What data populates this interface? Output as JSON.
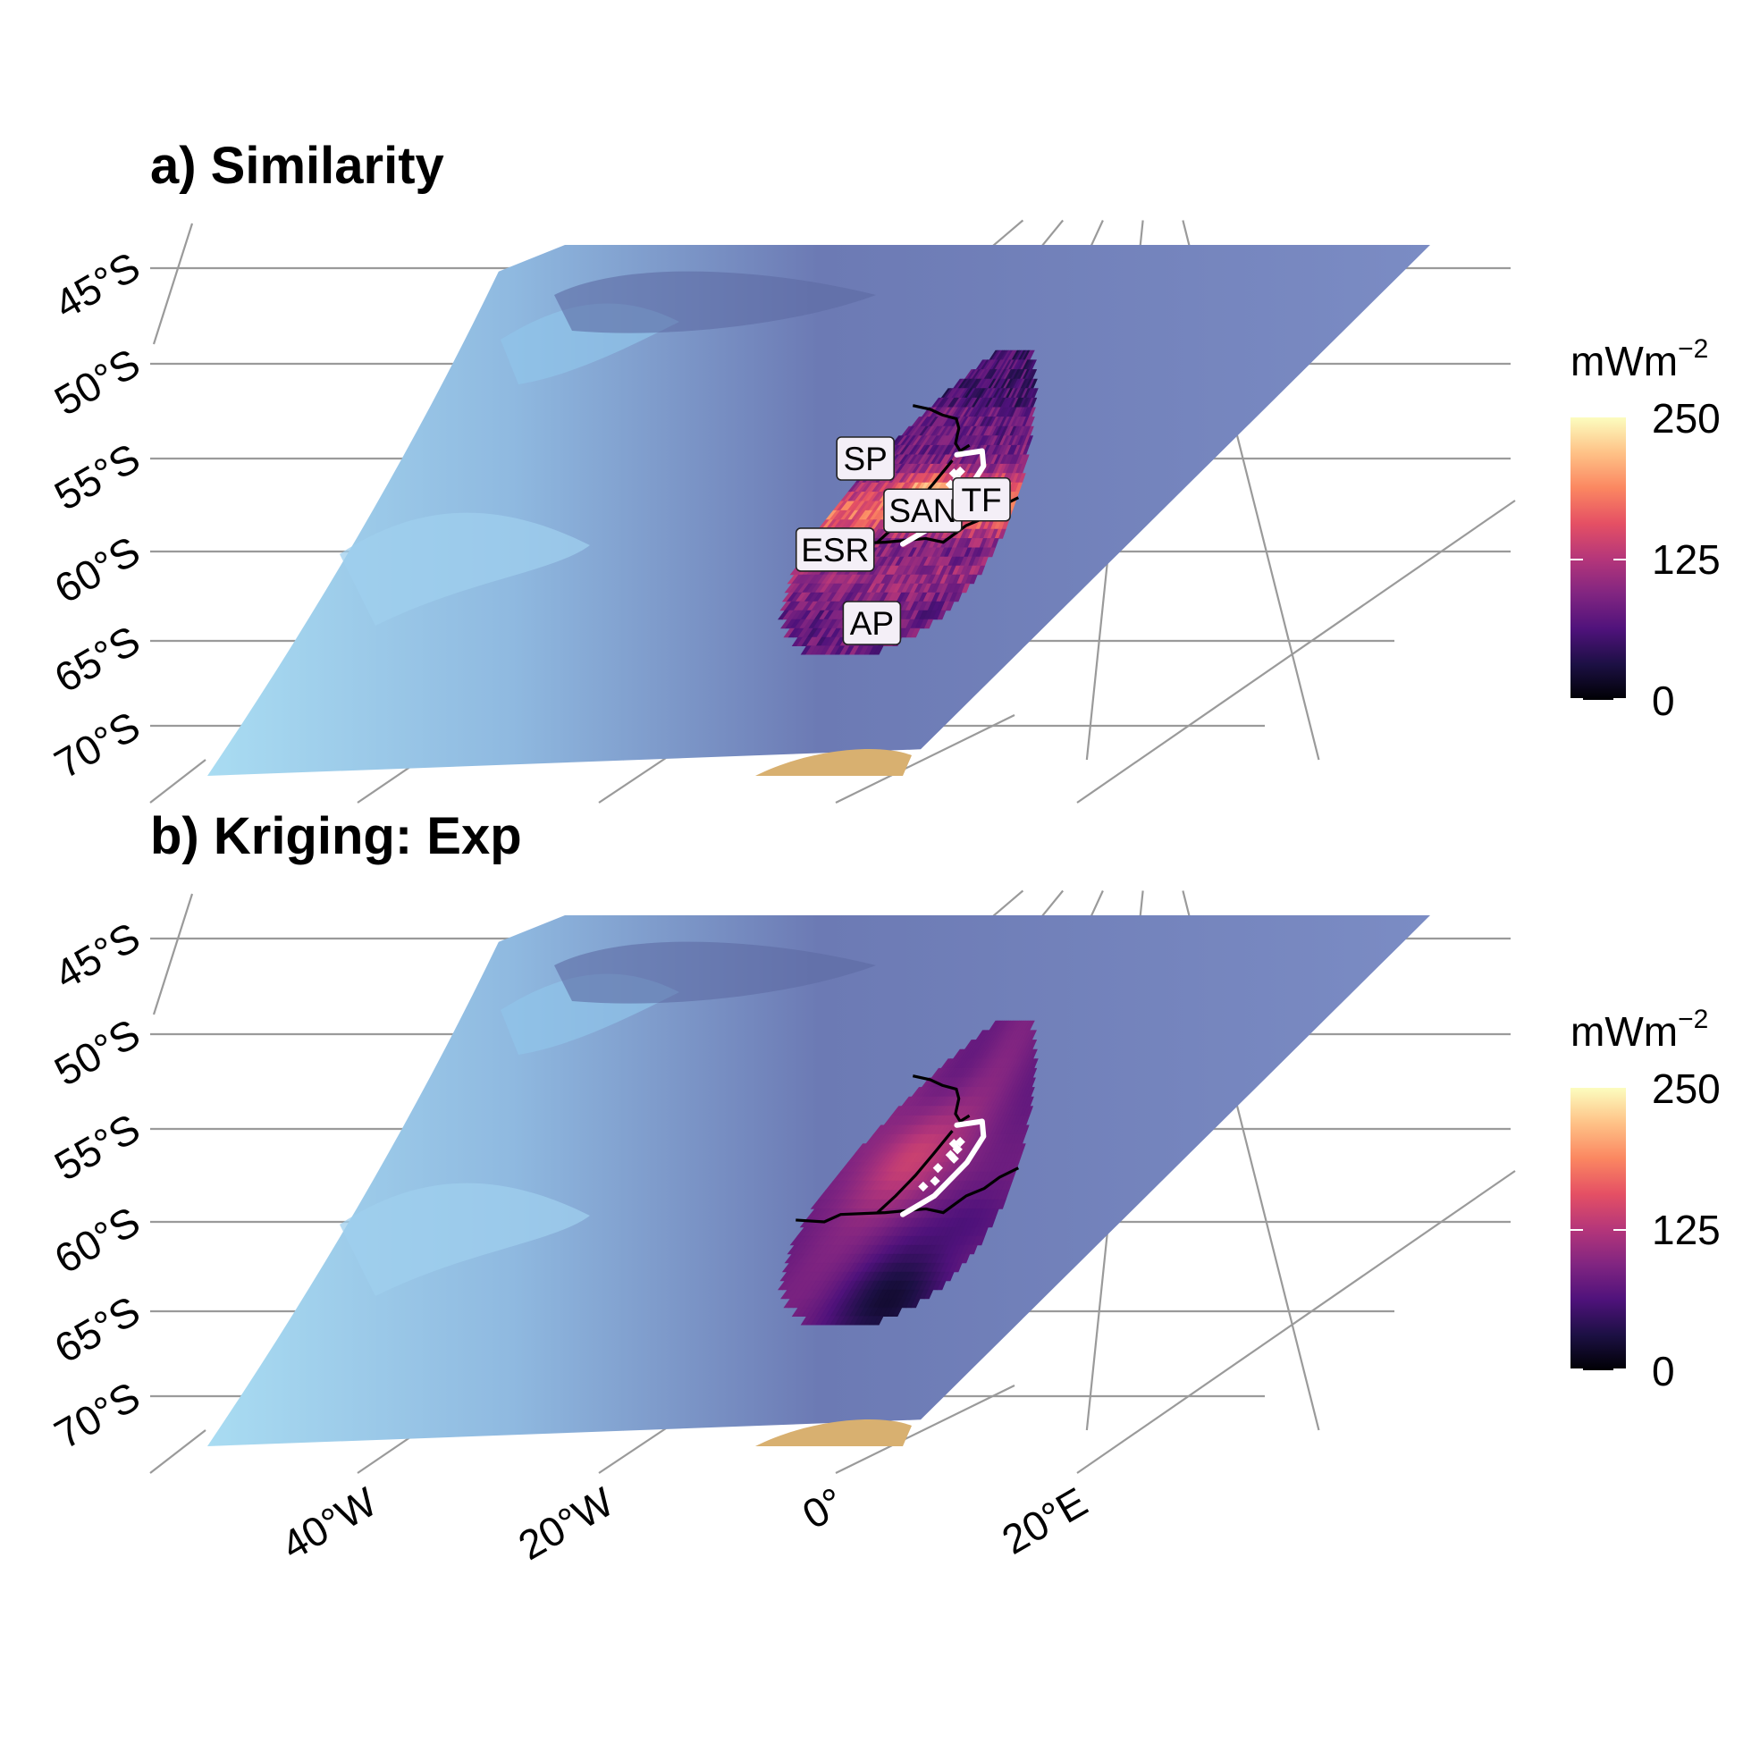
{
  "panels": [
    {
      "id": "a",
      "title": "a) Similarity",
      "field": "similarity",
      "labels": [
        {
          "text": "SP",
          "lon": -20.5,
          "lat": -55.0
        },
        {
          "text": "SAN",
          "lon": -6.5,
          "lat": -57.8
        },
        {
          "text": "TF",
          "lon": 1.0,
          "lat": -57.2
        },
        {
          "text": "ESR",
          "lon": -14.8,
          "lat": -59.9
        },
        {
          "text": "AP",
          "lon": -5.0,
          "lat": -64.0
        }
      ],
      "legend": {
        "title": "mWm",
        "title_exp": "−2",
        "ticks": [
          "250",
          "125",
          "0"
        ]
      }
    },
    {
      "id": "b",
      "title": "b) Kriging: Exp",
      "field": "kriging",
      "labels": [],
      "legend": {
        "title": "mWm",
        "title_exp": "−2",
        "ticks": [
          "250",
          "125",
          "0"
        ]
      }
    }
  ],
  "lat_labels": [
    "45°S",
    "50°S",
    "55°S",
    "60°S",
    "65°S",
    "70°S"
  ],
  "lon_labels": [
    "40°W",
    "20°W",
    "0°",
    "20°E"
  ],
  "colorscale": {
    "name": "magma",
    "min": 0,
    "max": 250,
    "stops": [
      "#000004",
      "#1c1044",
      "#4f127b",
      "#812581",
      "#b5367a",
      "#e55064",
      "#fb8761",
      "#fec287",
      "#fcfdbf"
    ]
  },
  "colors": {
    "ocean_deep": "#6e7db5",
    "ocean_shelf": "#9fd3ec",
    "land": "#d8b070",
    "boundary_black": "#000000",
    "survey_white": "#ffffff",
    "graticule": "#9a9a9a"
  },
  "map_features": {
    "lines": [
      "plate-boundary-north",
      "plate-boundary-south",
      "fracture-zone",
      "survey-outline"
    ]
  }
}
